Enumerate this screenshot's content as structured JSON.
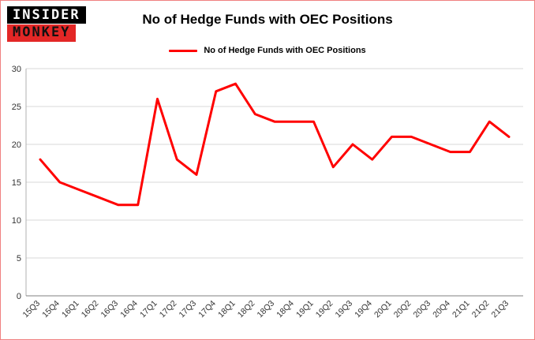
{
  "logo": {
    "line1": "INSIDER",
    "line2": "MONKEY"
  },
  "header": {
    "title": "No of Hedge Funds with OEC Positions"
  },
  "legend": {
    "label": "No of Hedge Funds with OEC Positions"
  },
  "colors": {
    "line": "#ff0000",
    "logo_red": "#e32726",
    "frame_border": "#f08080",
    "gridline": "#d9d9d9",
    "axis": "#808080",
    "tick_text": "#333333"
  },
  "chart_data": {
    "type": "line",
    "title": "No of Hedge Funds with OEC Positions",
    "categories": [
      "15Q3",
      "15Q4",
      "16Q1",
      "16Q2",
      "16Q3",
      "16Q4",
      "17Q1",
      "17Q2",
      "17Q3",
      "17Q4",
      "18Q1",
      "18Q2",
      "18Q3",
      "18Q4",
      "19Q1",
      "19Q2",
      "19Q3",
      "19Q4",
      "20Q1",
      "20Q2",
      "20Q3",
      "20Q4",
      "21Q1",
      "21Q2",
      "21Q3"
    ],
    "values": [
      18,
      15,
      14,
      13,
      12,
      12,
      26,
      18,
      16,
      27,
      28,
      24,
      23,
      23,
      23,
      17,
      20,
      18,
      21,
      21,
      20,
      19,
      19,
      23,
      21
    ],
    "xlabel": "",
    "ylabel": "",
    "ylim": [
      0,
      30
    ],
    "yticks": [
      0,
      5,
      10,
      15,
      20,
      25,
      30
    ],
    "grid": true,
    "legend_position": "top",
    "line_color": "#ff0000"
  }
}
